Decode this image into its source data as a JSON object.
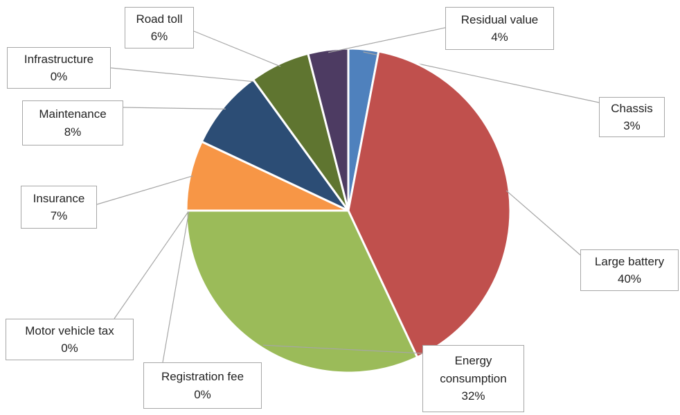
{
  "chart_data": {
    "type": "pie",
    "categories": [
      "Chassis",
      "Large battery",
      "Energy consumption",
      "Registration fee",
      "Motor vehicle tax",
      "Insurance",
      "Maintenance",
      "Infrastructure",
      "Road toll",
      "Residual value"
    ],
    "values": [
      3,
      40,
      32,
      0,
      0,
      7,
      8,
      0,
      6,
      4
    ],
    "value_labels": [
      "3%",
      "40%",
      "32%",
      "0%",
      "0%",
      "7%",
      "8%",
      "0%",
      "6%",
      "4%"
    ],
    "colors": [
      "#4f81bd",
      "#c0504d",
      "#9bbb59",
      "#8064a2",
      "#4bacc6",
      "#f79646",
      "#2c4d75",
      "#772c2a",
      "#5f7530",
      "#4d3b62"
    ]
  }
}
